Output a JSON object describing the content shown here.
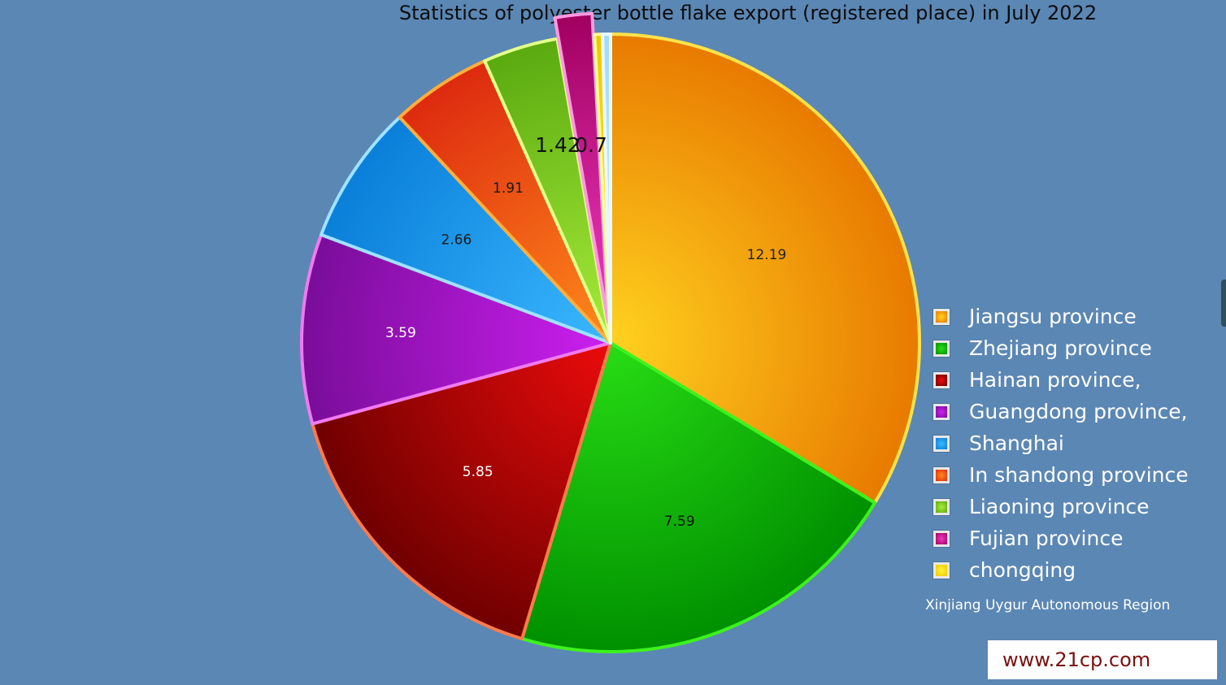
{
  "chart_data": {
    "type": "pie",
    "title": "Statistics of polyester bottle flake export (registered place) in July 2022",
    "slices": [
      {
        "name": "Jiangsu province",
        "value": 12.19,
        "label": "12.19",
        "color_light": "#ffd21f",
        "color_dark": "#e87a00",
        "edge": "#ffe24a"
      },
      {
        "name": "Zhejiang province",
        "value": 7.59,
        "label": "7.59",
        "color_light": "#28dd14",
        "color_dark": "#009000",
        "edge": "#3df21e"
      },
      {
        "name": "Hainan province,",
        "value": 5.85,
        "label": "5.85",
        "color_light": "#ec0b0b",
        "color_dark": "#700000",
        "edge": "#ff7a4a"
      },
      {
        "name": "Guangdong province,",
        "value": 3.59,
        "label": "3.59",
        "color_light": "#cc1ff0",
        "color_dark": "#7a0d9a",
        "edge": "#f07af0"
      },
      {
        "name": "Shanghai",
        "value": 2.66,
        "label": "2.66",
        "color_light": "#3ab8ff",
        "color_dark": "#0a7fd9",
        "edge": "#9fe2ff"
      },
      {
        "name": "In shandong province",
        "value": 1.91,
        "label": "1.91",
        "color_light": "#ff8a1a",
        "color_dark": "#dd2a10",
        "edge": "#ffae3a"
      },
      {
        "name": "Liaoning province",
        "value": 1.42,
        "label": "1.42",
        "color_light": "#a8ec3a",
        "color_dark": "#5aaa10",
        "edge": "#e4ff8a"
      },
      {
        "name": "Fujian province",
        "value": 0.7,
        "label": "0.7",
        "color_light": "#f03ac0",
        "color_dark": "#a00060",
        "edge": "#ff9ae0"
      },
      {
        "name": "chongqing",
        "value": 0.15,
        "label": "",
        "color_light": "#fff53a",
        "color_dark": "#f0c800",
        "edge": "#fffb9a"
      },
      {
        "name": "Xinjiang Uygur Autonomous Region",
        "value": 0.15,
        "label": "",
        "color_light": "#cfefff",
        "color_dark": "#9fdcff",
        "edge": "#eaf8ff"
      }
    ],
    "legend_position": "right",
    "start_angle_deg": 0,
    "direction": "clockwise"
  },
  "watermark": "www.21cp.com"
}
